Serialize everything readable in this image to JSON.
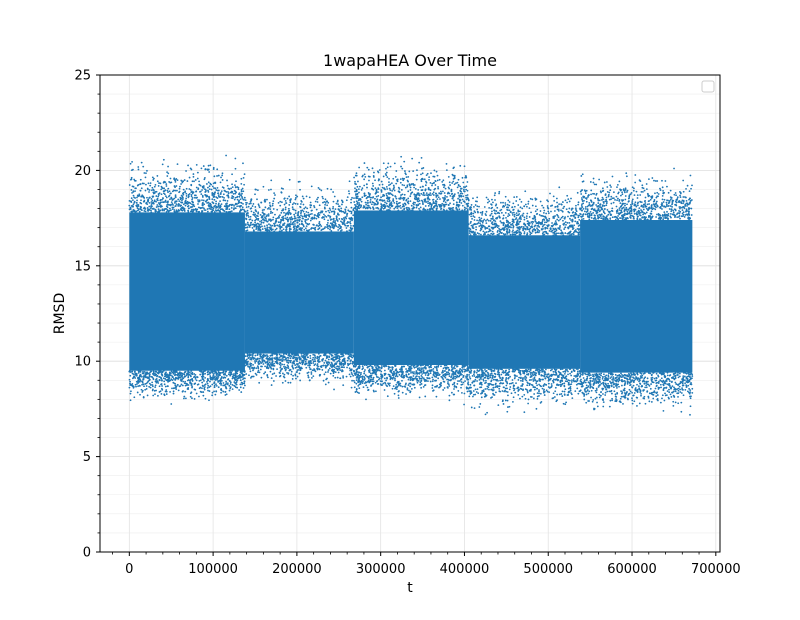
{
  "chart_data": {
    "type": "scatter",
    "title": "1wapaHEA Over Time",
    "xlabel": "t",
    "ylabel": "RMSD",
    "xlim": [
      -35000,
      705000
    ],
    "ylim": [
      0,
      25
    ],
    "xticks": [
      0,
      100000,
      200000,
      300000,
      400000,
      500000,
      600000,
      700000
    ],
    "yticks": [
      0,
      5,
      10,
      15,
      20,
      25
    ],
    "grid": true,
    "legend": "top-right (empty)",
    "marker_color": "#1f77b4",
    "series": [
      {
        "x_range": [
          0,
          672000
        ],
        "segments": [
          {
            "t_start": 0,
            "t_end": 138000,
            "core": [
              9.5,
              17.8
            ],
            "sparse": [
              7.6,
              21.0
            ]
          },
          {
            "t_start": 138000,
            "t_end": 268000,
            "core": [
              10.4,
              16.8
            ],
            "sparse": [
              8.3,
              20.0
            ]
          },
          {
            "t_start": 268000,
            "t_end": 405000,
            "core": [
              9.8,
              17.9
            ],
            "sparse": [
              7.6,
              21.1
            ]
          },
          {
            "t_start": 405000,
            "t_end": 538000,
            "core": [
              9.6,
              16.6
            ],
            "sparse": [
              6.9,
              19.6
            ]
          },
          {
            "t_start": 538000,
            "t_end": 672000,
            "core": [
              9.4,
              17.4
            ],
            "sparse": [
              6.8,
              20.3
            ]
          }
        ]
      }
    ]
  }
}
